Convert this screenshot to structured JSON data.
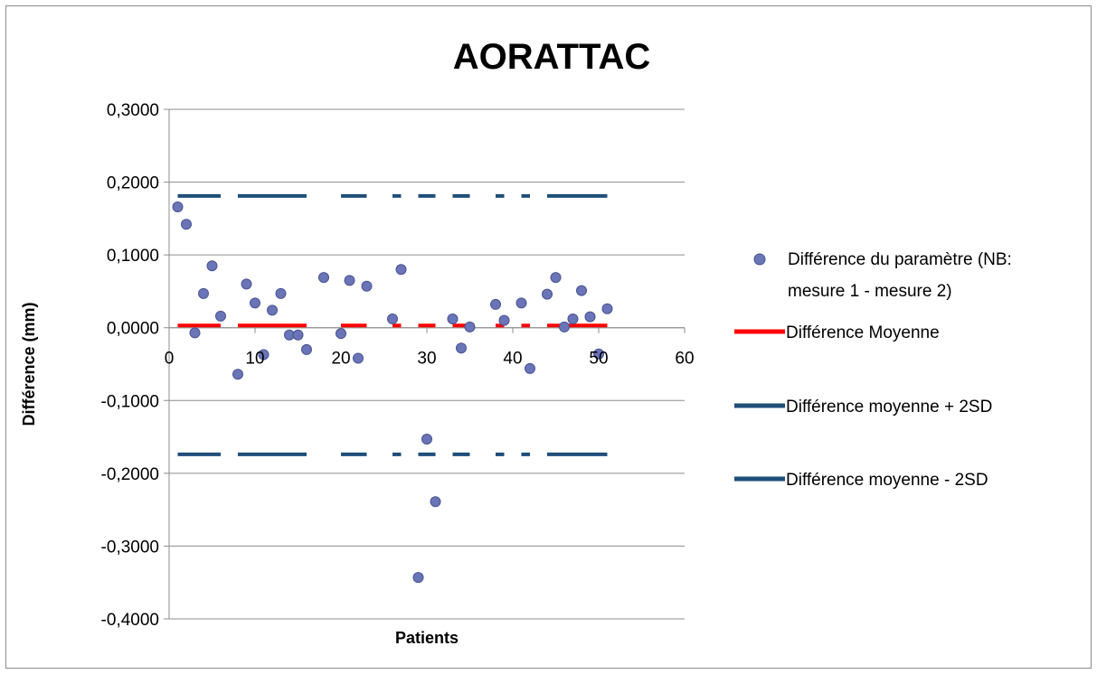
{
  "chart_data": {
    "type": "scatter",
    "title": "AORATTAC",
    "xlabel": "Patients",
    "ylabel": "Différence (mm)",
    "xlim": [
      0,
      60
    ],
    "ylim": [
      -0.4,
      0.3
    ],
    "x_ticks": [
      0,
      10,
      20,
      30,
      40,
      50,
      60
    ],
    "x_tick_labels": [
      "0",
      "10",
      "20",
      "30",
      "40",
      "50",
      "60"
    ],
    "y_ticks": [
      0.3,
      0.2,
      0.1,
      0.0,
      -0.1,
      -0.2,
      -0.3,
      -0.4
    ],
    "y_tick_labels": [
      "0,3000",
      "0,2000",
      "0,1000",
      "0,0000",
      "-0,1000",
      "-0,2000",
      "-0,3000",
      "-0,4000"
    ],
    "grid": "horizontal",
    "legend_position": "right",
    "series": [
      {
        "name": "Différence du paramètre (NB: mesure 1 - mesure 2)",
        "kind": "scatter",
        "color": "#6a75b8",
        "points": [
          [
            1,
            0.166
          ],
          [
            2,
            0.142
          ],
          [
            3,
            -0.007
          ],
          [
            4,
            0.047
          ],
          [
            5,
            0.085
          ],
          [
            6,
            0.016
          ],
          [
            8,
            -0.064
          ],
          [
            9,
            0.06
          ],
          [
            10,
            0.034
          ],
          [
            11,
            -0.037
          ],
          [
            12,
            0.024
          ],
          [
            13,
            0.047
          ],
          [
            14,
            -0.01
          ],
          [
            15,
            -0.01
          ],
          [
            16,
            -0.03
          ],
          [
            18,
            0.069
          ],
          [
            20,
            -0.008
          ],
          [
            21,
            0.065
          ],
          [
            22,
            -0.042
          ],
          [
            23,
            0.057
          ],
          [
            26,
            0.012
          ],
          [
            27,
            0.08
          ],
          [
            29,
            -0.343
          ],
          [
            30,
            -0.153
          ],
          [
            31,
            -0.239
          ],
          [
            33,
            0.012
          ],
          [
            34,
            -0.028
          ],
          [
            35,
            0.001
          ],
          [
            38,
            0.032
          ],
          [
            39,
            0.01
          ],
          [
            41,
            0.034
          ],
          [
            42,
            -0.056
          ],
          [
            44,
            0.046
          ],
          [
            45,
            0.069
          ],
          [
            46,
            0.001
          ],
          [
            47,
            0.012
          ],
          [
            48,
            0.051
          ],
          [
            49,
            0.015
          ],
          [
            50,
            -0.036
          ],
          [
            51,
            0.026
          ]
        ]
      },
      {
        "name": "Différence Moyenne",
        "kind": "line",
        "color": "#ff0000",
        "value": 0.003,
        "segments": [
          [
            1,
            6
          ],
          [
            8,
            16
          ],
          [
            20,
            23
          ],
          [
            26,
            27
          ],
          [
            29,
            31
          ],
          [
            33,
            35
          ],
          [
            38,
            39
          ],
          [
            41,
            42
          ],
          [
            44,
            51
          ]
        ]
      },
      {
        "name": "Différence moyenne + 2SD",
        "kind": "line",
        "color": "#1f4e79",
        "value": 0.181,
        "segments": [
          [
            1,
            6
          ],
          [
            8,
            16
          ],
          [
            20,
            23
          ],
          [
            26,
            27
          ],
          [
            29,
            31
          ],
          [
            33,
            35
          ],
          [
            38,
            39
          ],
          [
            41,
            42
          ],
          [
            44,
            51
          ]
        ]
      },
      {
        "name": "Différence moyenne - 2SD",
        "kind": "line",
        "color": "#1f4e79",
        "value": -0.174,
        "segments": [
          [
            1,
            6
          ],
          [
            8,
            16
          ],
          [
            20,
            23
          ],
          [
            26,
            27
          ],
          [
            29,
            31
          ],
          [
            33,
            35
          ],
          [
            38,
            39
          ],
          [
            41,
            42
          ],
          [
            44,
            51
          ]
        ]
      }
    ]
  },
  "legend": {
    "scatter_line1": "Différence du paramètre (NB:",
    "scatter_line2": "mesure 1 - mesure 2)",
    "mean_label": "Différence Moyenne",
    "plus_label": "Différence moyenne + 2SD",
    "minus_label": "Différence moyenne - 2SD"
  }
}
